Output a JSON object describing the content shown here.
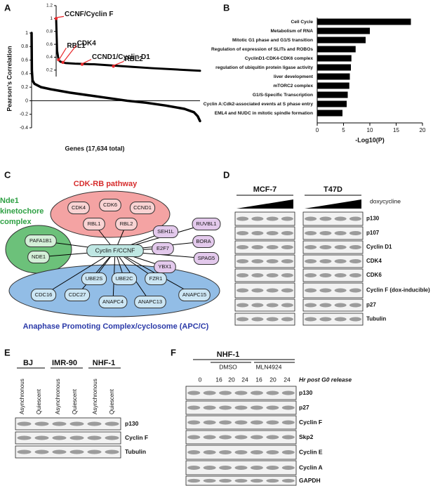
{
  "panel_labels": [
    "A",
    "B",
    "C",
    "D",
    "E",
    "F"
  ],
  "chart_data": [
    {
      "type": "line",
      "xlabel": "Genes (17,634 total)",
      "ylabel": "Pearson's Correlation",
      "x": [
        1,
        30,
        100,
        300,
        1000,
        2000,
        4000,
        6000,
        8000,
        10000,
        12000,
        14000,
        16000,
        17000,
        17400,
        17634
      ],
      "values": [
        1,
        0.45,
        0.3,
        0.25,
        0.2,
        0.17,
        0.12,
        0.08,
        0.04,
        0.0,
        -0.03,
        -0.07,
        -0.12,
        -0.17,
        -0.23,
        -0.3
      ],
      "color": "#000000",
      "xlim": [
        1,
        17634
      ],
      "ylim": [
        -0.4,
        1
      ],
      "yticks": [
        1,
        0.8,
        0.6,
        0.4,
        0.2,
        0,
        -0.2,
        -0.4
      ]
    },
    {
      "type": "line",
      "x": [
        1,
        3,
        6,
        10,
        20,
        40,
        80,
        120,
        160,
        200,
        250,
        300
      ],
      "values": [
        1,
        0.5,
        0.36,
        0.33,
        0.31,
        0.3,
        0.29,
        0.27,
        0.25,
        0.23,
        0.21,
        0.19
      ],
      "color": "#000000",
      "highlight_color": "#e8272a",
      "xlim": [
        1,
        300
      ],
      "ylim": [
        0.1,
        1.2
      ],
      "yticks": [
        1.2,
        1,
        0.8,
        0.6,
        0.4,
        0.2
      ],
      "annotations": [
        {
          "label": "CCNF/Cyclin F",
          "x": 1,
          "y": 1
        },
        {
          "label": "RBL1",
          "x": 6,
          "y": 0.36
        },
        {
          "label": "CDK4",
          "x": 15,
          "y": 0.32
        },
        {
          "label": "CCND1/Cyclin D1",
          "x": 55,
          "y": 0.29
        },
        {
          "label": "RBL2",
          "x": 120,
          "y": 0.26
        }
      ]
    },
    {
      "type": "bar",
      "orientation": "horizontal",
      "xlabel": "-Log10(P)",
      "color": "#000000",
      "categories": [
        "Cell Cycle",
        "Metabolism of RNA",
        "Mitotic G1 phase and G1/S transition",
        "Regulation of expression of SLITs and ROBOs",
        "CyclinD1-CDK4-CDK6 complex",
        "regulation of ubiquitin protein ligase activity",
        "liver development",
        "mTORC2 complex",
        "G1/S-Specific Transcription",
        "Cyclin A:Cdk2-associated events at S phase entry",
        "EML4 and NUDC in mitotic spindle formation"
      ],
      "values": [
        17.8,
        10,
        9.2,
        7.3,
        6.5,
        6.4,
        6.2,
        6.1,
        5.8,
        5.6,
        4.8
      ],
      "xlim": [
        0,
        20
      ],
      "xticks": [
        0,
        5,
        10,
        15,
        20
      ]
    }
  ],
  "network": {
    "cdk_title": "CDK-RB pathway",
    "nde1_title": [
      "Nde1",
      "kinetochore",
      "complex"
    ],
    "apc_title": "Anaphase Promoting Complex/cyclosome (APC/C)",
    "center": "Cyclin F/CCNF",
    "cdk": [
      "CDK4",
      "CDK6",
      "CCND1",
      "RBL1",
      "RBL2"
    ],
    "nde1": [
      "PAFA1B1",
      "NDE1"
    ],
    "other": [
      "SEH1L",
      "RUVBL1",
      "E2F7",
      "BORA",
      "SPAG5",
      "YBX1"
    ],
    "apc": [
      "UBE2S",
      "UBE2C",
      "FZR1",
      "CDC16",
      "CDC27",
      "ANAPC4",
      "ANAPC13",
      "ANAPC15"
    ]
  },
  "blot_d": {
    "cell_lines": [
      "MCF-7",
      "T47D"
    ],
    "treatment": "doxycycline",
    "rows": [
      "p130",
      "p107",
      "Cyclin D1",
      "CDK4",
      "CDK6",
      "Cyclin F (dox-inducible)",
      "p27",
      "Tubulin"
    ]
  },
  "blot_e": {
    "cell_lines": [
      "BJ",
      "IMR-90",
      "NHF-1"
    ],
    "lanes": [
      "Asynchronous",
      "Quiescent",
      "Asynchronous",
      "Quiescent",
      "Asynchronous",
      "Quiescent"
    ],
    "rows": [
      "p130",
      "Cyclin F",
      "Tubulin"
    ]
  },
  "blot_f": {
    "cell_line": "NHF-1",
    "treatments": [
      "DMSO",
      "MLN4924"
    ],
    "timepoints": [
      0,
      16,
      20,
      24,
      16,
      20,
      24
    ],
    "timepoint_label": "Hr post G0 release",
    "rows": [
      "p130",
      "p27",
      "Cyclin F",
      "Skp2",
      "Cyclin E",
      "Cyclin A",
      "GAPDH"
    ]
  }
}
